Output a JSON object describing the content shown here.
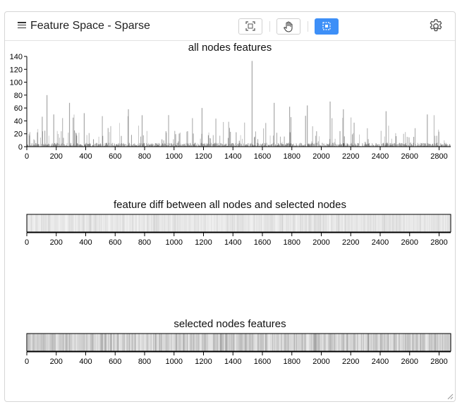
{
  "header": {
    "title": "Feature Space - Sparse",
    "tools": [
      {
        "name": "fit-view-button",
        "icon": "fit-view-icon",
        "active": false
      },
      {
        "name": "pan-button",
        "icon": "hand-icon",
        "active": false
      },
      {
        "name": "select-button",
        "icon": "box-select-icon",
        "active": true
      }
    ],
    "settings_icon": "gear-icon",
    "accent_color": "#3d8ff7"
  },
  "chart_data": [
    {
      "type": "bar",
      "title": "all nodes features",
      "x_ticks": [
        0,
        200,
        400,
        600,
        800,
        1000,
        1200,
        1400,
        1600,
        1800,
        2000,
        2200,
        2400,
        2600,
        2800
      ],
      "y_ticks": [
        0,
        20,
        40,
        60,
        80,
        100,
        120,
        140
      ],
      "xlim": [
        0,
        2879
      ],
      "ylim": [
        0,
        140
      ],
      "peaks": [
        {
          "x": 137,
          "y": 80
        },
        {
          "x": 183,
          "y": 50
        },
        {
          "x": 290,
          "y": 68
        },
        {
          "x": 390,
          "y": 52
        },
        {
          "x": 690,
          "y": 58
        },
        {
          "x": 1190,
          "y": 60
        },
        {
          "x": 1530,
          "y": 133
        },
        {
          "x": 1680,
          "y": 68
        },
        {
          "x": 1785,
          "y": 62
        },
        {
          "x": 1905,
          "y": 64
        },
        {
          "x": 2060,
          "y": 70
        },
        {
          "x": 2150,
          "y": 58
        },
        {
          "x": 2440,
          "y": 55
        },
        {
          "x": 2720,
          "y": 50
        }
      ]
    },
    {
      "type": "heatmap",
      "title": "feature diff between all nodes and selected nodes",
      "x_ticks": [
        0,
        200,
        400,
        600,
        800,
        1000,
        1200,
        1400,
        1600,
        1800,
        2000,
        2200,
        2400,
        2600,
        2800
      ],
      "xlim": [
        0,
        2879
      ]
    },
    {
      "type": "heatmap",
      "title": "selected nodes features",
      "x_ticks": [
        0,
        200,
        400,
        600,
        800,
        1000,
        1200,
        1400,
        1600,
        1800,
        2000,
        2200,
        2400,
        2600,
        2800
      ],
      "xlim": [
        0,
        2879
      ]
    }
  ]
}
